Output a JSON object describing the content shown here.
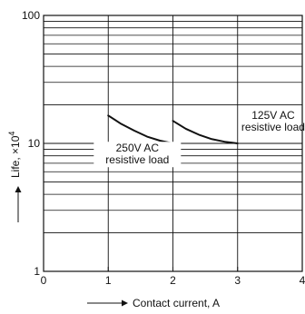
{
  "chart_data": {
    "type": "line",
    "title": "",
    "xlabel": "Contact current, A",
    "ylabel": "Life, ×10⁴",
    "ylabel_main": "Life, ×10",
    "ylabel_exp": "4",
    "x_scale": "linear",
    "y_scale": "log",
    "xlim": [
      0,
      4
    ],
    "ylim": [
      1,
      100
    ],
    "grid": true,
    "x_ticks": [
      0,
      1,
      2,
      3,
      4
    ],
    "x_tick_labels": [
      "0",
      "1",
      "2",
      "3",
      "4"
    ],
    "y_ticks": [
      1,
      10,
      100
    ],
    "y_tick_labels": [
      "1",
      "10",
      "100"
    ],
    "series": [
      {
        "name": "250V AC resistive load",
        "label_lines": [
          "250V AC",
          "resistive load"
        ],
        "x": [
          1.0,
          1.2,
          1.4,
          1.6,
          1.8,
          2.0
        ],
        "y": [
          16.5,
          14.2,
          12.6,
          11.3,
          10.5,
          10.0
        ]
      },
      {
        "name": "125V AC resistive load",
        "label_lines": [
          "125V AC",
          "resistive load"
        ],
        "x": [
          2.0,
          2.2,
          2.4,
          2.6,
          2.8,
          3.0
        ],
        "y": [
          15.0,
          13.0,
          11.7,
          10.8,
          10.3,
          10.0
        ]
      }
    ]
  }
}
